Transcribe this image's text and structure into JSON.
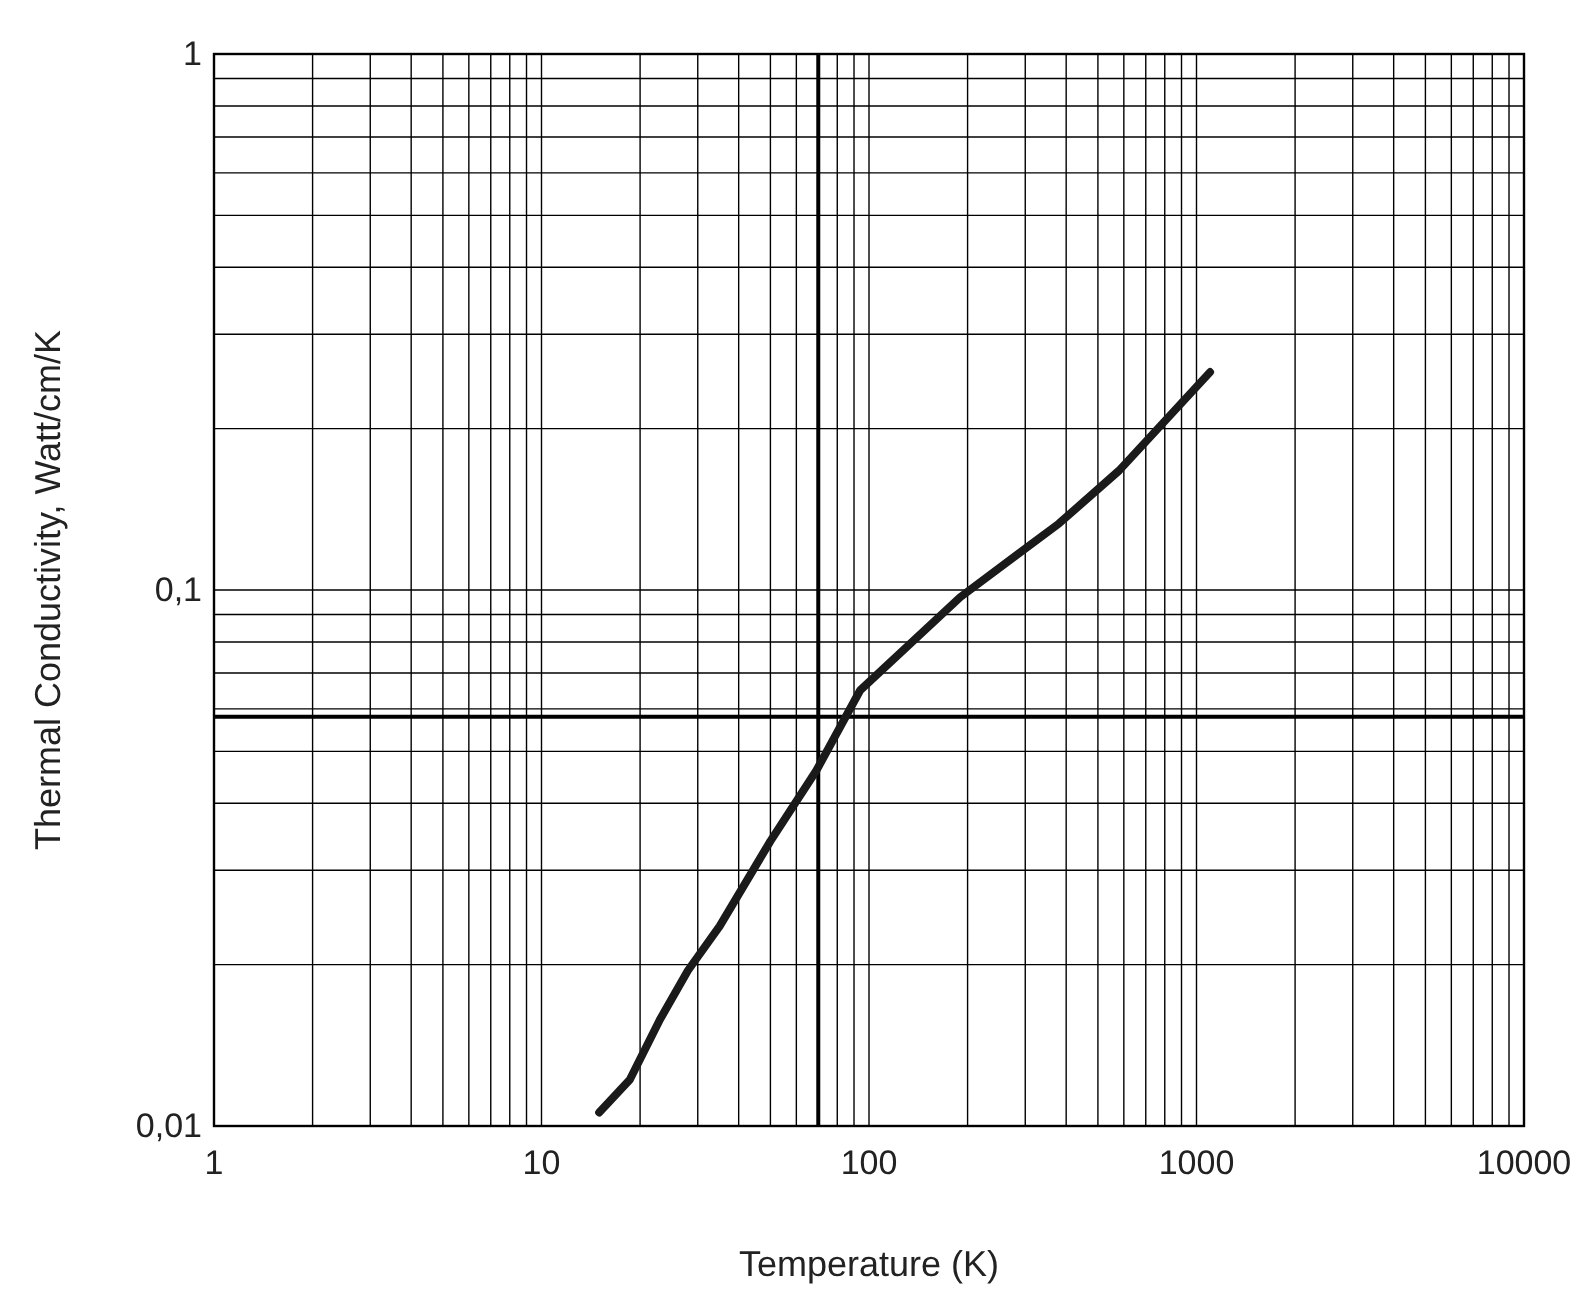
{
  "chart_data": {
    "type": "line",
    "xlabel": "Temperature (K)",
    "ylabel": "Thermal Conductivity, Watt/cm/K",
    "log": "xy",
    "grid": true,
    "marker": "none",
    "line_style": "solid",
    "xlim": [
      1,
      10000
    ],
    "ylim": [
      0.01,
      1
    ],
    "xticks": [
      1,
      {
        "value": 2,
        "label": null
      },
      {
        "value": 3,
        "label": null
      },
      {
        "value": 4,
        "label": null
      },
      {
        "value": 5,
        "label": null
      },
      {
        "value": 6,
        "label": null
      },
      {
        "value": 7,
        "label": null
      },
      {
        "value": 8,
        "label": null
      },
      {
        "value": 9,
        "label": null
      },
      10,
      {
        "value": 20,
        "label": null
      },
      {
        "value": 30,
        "label": null
      },
      {
        "value": 40,
        "label": null
      },
      {
        "value": 50,
        "label": null
      },
      {
        "value": 60,
        "label": null
      },
      {
        "value": 70,
        "label": null
      },
      {
        "value": 80,
        "label": null
      },
      {
        "value": 90,
        "label": null
      },
      100,
      {
        "value": 200,
        "label": null
      },
      {
        "value": 300,
        "label": null
      },
      {
        "value": 400,
        "label": null
      },
      {
        "value": 500,
        "label": null
      },
      {
        "value": 600,
        "label": null
      },
      {
        "value": 700,
        "label": null
      },
      {
        "value": 800,
        "label": null
      },
      {
        "value": 900,
        "label": null
      },
      1000,
      {
        "value": 2000,
        "label": null
      },
      {
        "value": 3000,
        "label": null
      },
      {
        "value": 4000,
        "label": null
      },
      {
        "value": 5000,
        "label": null
      },
      {
        "value": 6000,
        "label": null
      },
      {
        "value": 7000,
        "label": null
      },
      {
        "value": 8000,
        "label": null
      },
      {
        "value": 9000,
        "label": null
      },
      10000
    ],
    "yticks": [
      {
        "value": 0.01,
        "label": "0,01"
      },
      {
        "value": 0.02,
        "label": null
      },
      {
        "value": 0.03,
        "label": null
      },
      {
        "value": 0.04,
        "label": null
      },
      {
        "value": 0.05,
        "label": null
      },
      {
        "value": 0.06,
        "label": null
      },
      {
        "value": 0.07,
        "label": null
      },
      {
        "value": 0.08,
        "label": null
      },
      {
        "value": 0.09,
        "label": null
      },
      {
        "value": 0.1,
        "label": "0,1"
      },
      {
        "value": 0.2,
        "label": null
      },
      {
        "value": 0.3,
        "label": null
      },
      {
        "value": 0.4,
        "label": null
      },
      {
        "value": 0.5,
        "label": null
      },
      {
        "value": 0.6,
        "label": null
      },
      {
        "value": 0.7,
        "label": null
      },
      {
        "value": 0.8,
        "label": null
      },
      {
        "value": 0.9,
        "label": null
      },
      1
    ],
    "ref_lines": [
      {
        "axis": "x",
        "value": 70,
        "color": "#000000"
      },
      {
        "axis": "y",
        "value": 0.058,
        "color": "#000000"
      }
    ],
    "series": [
      {
        "color": "#1a1a1a",
        "x": [
          15,
          18.6,
          23,
          28,
          35,
          50,
          69,
          94,
          190,
          380,
          580,
          1100
        ],
        "values": [
          0.0106,
          0.0122,
          0.0158,
          0.0195,
          0.0236,
          0.034,
          0.046,
          0.065,
          0.097,
          0.133,
          0.167,
          0.255
        ]
      }
    ]
  }
}
